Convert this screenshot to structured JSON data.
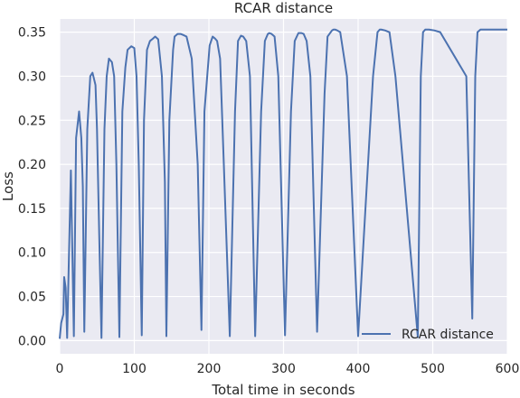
{
  "chart_data": {
    "type": "line",
    "title": "RCAR distance",
    "xlabel": "Total time in seconds",
    "ylabel": "Loss",
    "xlim": [
      0,
      600
    ],
    "ylim": [
      -0.015,
      0.365
    ],
    "xticks": [
      0,
      100,
      200,
      300,
      400,
      500,
      600
    ],
    "yticks": [
      0.0,
      0.05,
      0.1,
      0.15,
      0.2,
      0.25,
      0.3,
      0.35
    ],
    "ytick_labels": [
      "0.00",
      "0.05",
      "0.10",
      "0.15",
      "0.20",
      "0.25",
      "0.30",
      "0.35"
    ],
    "grid": true,
    "background": "#eaeaf2",
    "line_color": "#4c72b0",
    "legend": {
      "position": "lower-right",
      "entries": [
        "RCAR distance"
      ]
    },
    "series": [
      {
        "name": "RCAR distance",
        "x": [
          0,
          2,
          5,
          6,
          8,
          10,
          12,
          15,
          19,
          22,
          26,
          29,
          31,
          33,
          37,
          41,
          44,
          48,
          50,
          53,
          56,
          60,
          63,
          66,
          70,
          73,
          76,
          80,
          84,
          88,
          91,
          96,
          100,
          103,
          106,
          110,
          113,
          117,
          121,
          124,
          128,
          132,
          137,
          141,
          143,
          147,
          152,
          154,
          158,
          162,
          165,
          170,
          177,
          185,
          190,
          194,
          201,
          205,
          208,
          211,
          215,
          220,
          228,
          235,
          239,
          243,
          246,
          250,
          255,
          262,
          270,
          275,
          279,
          281,
          284,
          288,
          293,
          302,
          310,
          315,
          320,
          324,
          327,
          331,
          336,
          345,
          355,
          359,
          365,
          367,
          369,
          372,
          376,
          385,
          400,
          420,
          426,
          429,
          431,
          436,
          442,
          450,
          480,
          484,
          487,
          490,
          495,
          502,
          510,
          545,
          553,
          557,
          560,
          564,
          570,
          580,
          600
        ],
        "y": [
          0.002,
          0.02,
          0.03,
          0.072,
          0.06,
          0.003,
          0.08,
          0.193,
          0.005,
          0.23,
          0.26,
          0.23,
          0.175,
          0.01,
          0.24,
          0.3,
          0.304,
          0.29,
          0.24,
          0.12,
          0.003,
          0.24,
          0.3,
          0.32,
          0.316,
          0.3,
          0.2,
          0.004,
          0.26,
          0.31,
          0.33,
          0.334,
          0.332,
          0.3,
          0.2,
          0.006,
          0.25,
          0.33,
          0.34,
          0.342,
          0.345,
          0.342,
          0.3,
          0.18,
          0.005,
          0.25,
          0.33,
          0.345,
          0.348,
          0.348,
          0.347,
          0.345,
          0.32,
          0.2,
          0.012,
          0.26,
          0.335,
          0.345,
          0.343,
          0.34,
          0.32,
          0.2,
          0.005,
          0.26,
          0.34,
          0.346,
          0.345,
          0.34,
          0.3,
          0.005,
          0.26,
          0.34,
          0.348,
          0.349,
          0.348,
          0.345,
          0.3,
          0.006,
          0.26,
          0.34,
          0.349,
          0.349,
          0.348,
          0.34,
          0.3,
          0.01,
          0.28,
          0.345,
          0.352,
          0.353,
          0.353,
          0.352,
          0.35,
          0.3,
          0.005,
          0.3,
          0.35,
          0.353,
          0.353,
          0.352,
          0.35,
          0.3,
          0.004,
          0.3,
          0.35,
          0.353,
          0.353,
          0.352,
          0.35,
          0.3,
          0.025,
          0.3,
          0.35,
          0.353,
          0.353,
          0.353,
          0.353
        ]
      }
    ]
  }
}
